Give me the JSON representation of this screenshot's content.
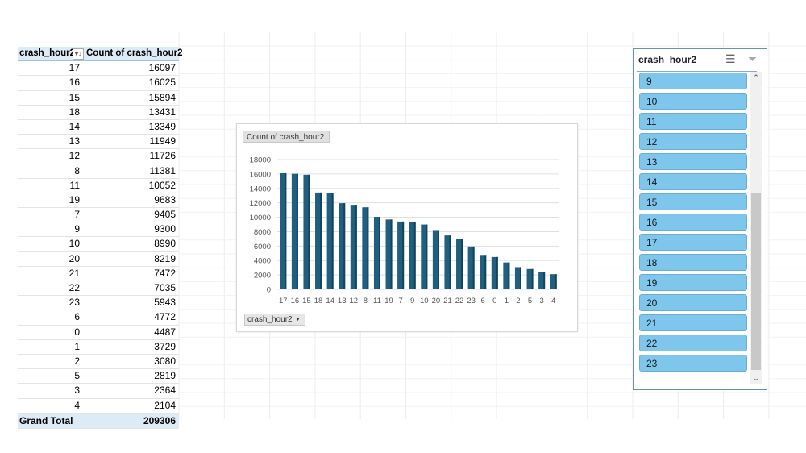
{
  "pivot_table": {
    "headers": [
      "crash_hour2",
      "Count of crash_hour2"
    ],
    "rows": [
      [
        "17",
        "16097"
      ],
      [
        "16",
        "16025"
      ],
      [
        "15",
        "15894"
      ],
      [
        "18",
        "13431"
      ],
      [
        "14",
        "13349"
      ],
      [
        "13",
        "11949"
      ],
      [
        "12",
        "11726"
      ],
      [
        "8",
        "11381"
      ],
      [
        "11",
        "10052"
      ],
      [
        "19",
        "9683"
      ],
      [
        "7",
        "9405"
      ],
      [
        "9",
        "9300"
      ],
      [
        "10",
        "8990"
      ],
      [
        "20",
        "8219"
      ],
      [
        "21",
        "7472"
      ],
      [
        "22",
        "7035"
      ],
      [
        "23",
        "5943"
      ],
      [
        "6",
        "4772"
      ],
      [
        "0",
        "4487"
      ],
      [
        "1",
        "3729"
      ],
      [
        "2",
        "3080"
      ],
      [
        "5",
        "2819"
      ],
      [
        "3",
        "2364"
      ],
      [
        "4",
        "2104"
      ]
    ],
    "total_label": "Grand Total",
    "total_value": "209306",
    "sort_icon": "sort-descending-icon"
  },
  "chart_data": {
    "type": "bar",
    "title": "Count of crash_hour2",
    "field_button": "crash_hour2",
    "categories": [
      "17",
      "16",
      "15",
      "18",
      "14",
      "13",
      "12",
      "8",
      "11",
      "19",
      "7",
      "9",
      "10",
      "20",
      "21",
      "22",
      "23",
      "6",
      "0",
      "1",
      "2",
      "5",
      "3",
      "4"
    ],
    "values": [
      16097,
      16025,
      15894,
      13431,
      13349,
      11949,
      11726,
      11381,
      10052,
      9683,
      9405,
      9300,
      8990,
      8219,
      7472,
      7035,
      5943,
      4772,
      4487,
      3729,
      3080,
      2819,
      2364,
      2104
    ],
    "ylim": [
      0,
      18000
    ],
    "yticks": [
      "0",
      "2000",
      "4000",
      "6000",
      "8000",
      "10000",
      "12000",
      "14000",
      "16000",
      "18000"
    ],
    "grid": true,
    "legend": "none",
    "bar_color": "#1f5f7f"
  },
  "slicer": {
    "title": "crash_hour2",
    "items": [
      "9",
      "10",
      "11",
      "12",
      "13",
      "14",
      "15",
      "16",
      "17",
      "18",
      "19",
      "20",
      "21",
      "22",
      "23"
    ],
    "item_color": "#7fc6ec",
    "icons": [
      "multi-select-icon",
      "clear-filter-icon"
    ]
  }
}
